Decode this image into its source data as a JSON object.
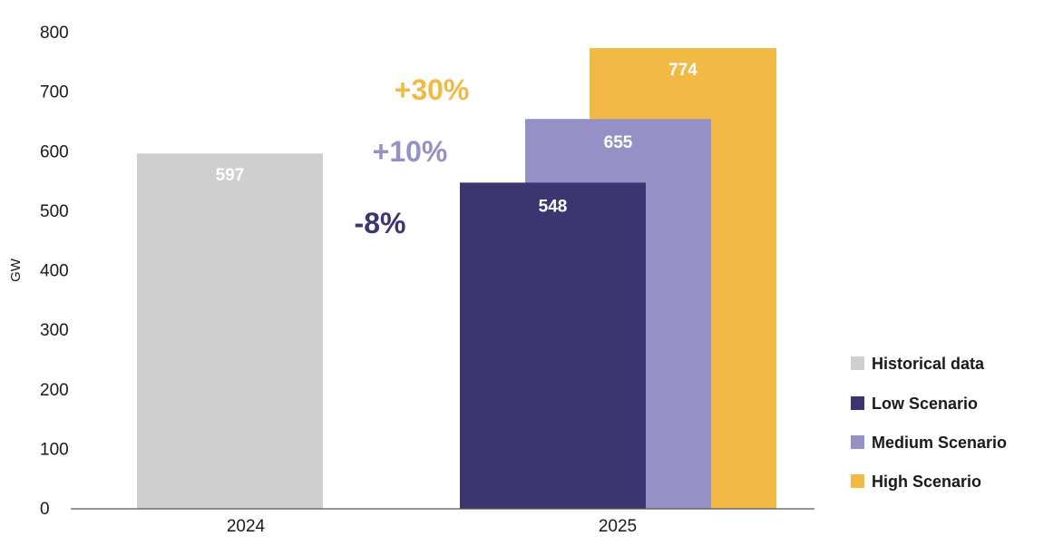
{
  "chart_data": {
    "type": "bar",
    "ylabel": "GW",
    "xlabel": "",
    "ylim": [
      0,
      800
    ],
    "yticks": [
      0,
      100,
      200,
      300,
      400,
      500,
      600,
      700,
      800
    ],
    "categories": [
      "2024",
      "2025"
    ],
    "grid": false,
    "legend_position": "right",
    "series": [
      {
        "key": "historical",
        "name": "Historical data",
        "color": "#cfcfcf",
        "values": [
          597,
          null
        ],
        "labels": [
          "597",
          ""
        ]
      },
      {
        "key": "low",
        "name": "Low Scenario",
        "color": "#3b3572",
        "values": [
          null,
          548
        ],
        "labels": [
          "",
          "548"
        ]
      },
      {
        "key": "medium",
        "name": "Medium Scenario",
        "color": "#9591c6",
        "values": [
          null,
          655
        ],
        "labels": [
          "",
          "655"
        ]
      },
      {
        "key": "high",
        "name": "High Scenario",
        "color": "#f0ba44",
        "values": [
          null,
          774
        ],
        "labels": [
          "",
          "774"
        ]
      }
    ],
    "annotations": [
      {
        "key": "high",
        "text": "+30%",
        "color": "#f0ba44"
      },
      {
        "key": "medium",
        "text": "+10%",
        "color": "#9591c6"
      },
      {
        "key": "low",
        "text": "-8%",
        "color": "#3b3572"
      }
    ]
  }
}
